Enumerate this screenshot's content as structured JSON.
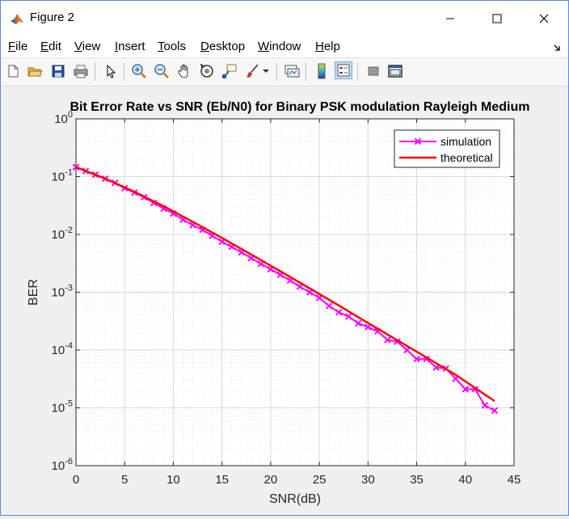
{
  "window": {
    "title": "Figure 2"
  },
  "menu": [
    {
      "underline": "F",
      "rest": "ile"
    },
    {
      "underline": "E",
      "rest": "dit"
    },
    {
      "underline": "V",
      "rest": "iew"
    },
    {
      "underline": "I",
      "rest": "nsert"
    },
    {
      "underline": "T",
      "rest": "ools"
    },
    {
      "underline": "D",
      "rest": "esktop"
    },
    {
      "underline": "W",
      "rest": "indow"
    },
    {
      "underline": "H",
      "rest": "elp"
    }
  ],
  "toolbar": {
    "icons": [
      "new-figure-icon",
      "open-file-icon",
      "save-icon",
      "print-icon",
      "select-arrow-icon",
      "zoom-in-icon",
      "zoom-out-icon",
      "pan-hand-icon",
      "rotate-3d-icon",
      "data-cursor-icon",
      "brush-icon",
      "brush-dropdown-icon",
      "link-plot-icon",
      "insert-colorbar-icon",
      "insert-legend-icon",
      "hide-plot-tools-icon",
      "show-plot-tools-icon"
    ]
  },
  "colors": {
    "simulation": "#ff00ff",
    "theoretical": "#ff0000",
    "grid": "#d9d9d9"
  },
  "chart_data": {
    "type": "line",
    "title": "Bit Error Rate vs SNR (Eb/N0) for Binary PSK modulation Rayleigh Medium",
    "xlabel": "SNR(dB)",
    "ylabel": "BER",
    "xlim": [
      0,
      45
    ],
    "ylim_exponents": [
      -6,
      0
    ],
    "yscale": "log",
    "xticks": [
      "0",
      "5",
      "10",
      "15",
      "20",
      "25",
      "30",
      "35",
      "40",
      "45"
    ],
    "yticks": [
      {
        "base": "10",
        "exp": "-6"
      },
      {
        "base": "10",
        "exp": "-5"
      },
      {
        "base": "10",
        "exp": "-4"
      },
      {
        "base": "10",
        "exp": "-3"
      },
      {
        "base": "10",
        "exp": "-2"
      },
      {
        "base": "10",
        "exp": "-1"
      },
      {
        "base": "10",
        "exp": "0"
      }
    ],
    "grid": true,
    "minor_grid": true,
    "legend_position": "top-right",
    "series": [
      {
        "name": "simulation",
        "style": "line-x-marker",
        "x": [
          0,
          1,
          2,
          3,
          4,
          5,
          6,
          7,
          8,
          9,
          10,
          11,
          12,
          13,
          14,
          15,
          16,
          17,
          18,
          19,
          20,
          21,
          22,
          23,
          24,
          25,
          26,
          27,
          28,
          29,
          30,
          31,
          32,
          33,
          34,
          35,
          36,
          37,
          38,
          39,
          40,
          41,
          42,
          43
        ],
        "y": [
          0.146,
          0.125,
          0.108,
          0.092,
          0.078,
          0.063,
          0.053,
          0.044,
          0.035,
          0.028,
          0.023,
          0.018,
          0.0145,
          0.012,
          0.0095,
          0.0075,
          0.0061,
          0.0049,
          0.0039,
          0.0031,
          0.0025,
          0.002,
          0.0016,
          0.00125,
          0.001,
          0.0008,
          0.00058,
          0.00045,
          0.00038,
          0.00029,
          0.00025,
          0.00021,
          0.00015,
          0.00014,
          0.0001,
          7e-05,
          7e-05,
          5e-05,
          4.8e-05,
          3.2e-05,
          2.1e-05,
          2.1e-05,
          1.1e-05,
          9e-06
        ]
      },
      {
        "name": "theoretical",
        "style": "line",
        "x": [
          0,
          3,
          6,
          9,
          12,
          15,
          18,
          21,
          24,
          27,
          30,
          33,
          36,
          39,
          43
        ],
        "y": [
          0.1464,
          0.0924,
          0.0546,
          0.0308,
          0.0165,
          0.0087,
          0.0045,
          0.0023,
          0.00117,
          0.00059,
          0.000294,
          0.000148,
          7.44e-05,
          3.73e-05,
          1.31e-05
        ]
      }
    ]
  }
}
